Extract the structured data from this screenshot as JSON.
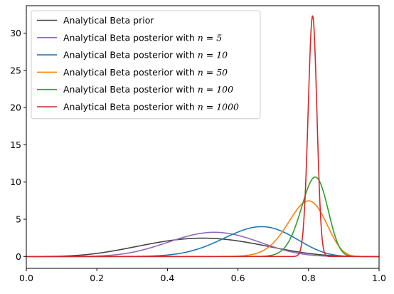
{
  "chart_data": {
    "type": "line",
    "title": "",
    "xlabel": "",
    "ylabel": "",
    "xlim": [
      0,
      1
    ],
    "ylim": [
      -1.6,
      33.7
    ],
    "x_ticks": [
      0.0,
      0.2,
      0.4,
      0.6,
      0.8,
      1.0
    ],
    "x_tick_labels": [
      "0.0",
      "0.2",
      "0.4",
      "0.6",
      "0.8",
      "1.0"
    ],
    "y_ticks": [
      0,
      5,
      10,
      15,
      20,
      25,
      30
    ],
    "y_tick_labels": [
      "0",
      "5",
      "10",
      "15",
      "20",
      "25",
      "30"
    ],
    "grid": false,
    "legend_position": "top-left",
    "series": [
      {
        "name": "Analytical Beta prior",
        "name_prefix": "Analytical Beta prior",
        "n_label": "",
        "color": "#444444",
        "alpha": 5,
        "beta": 5
      },
      {
        "name": "Analytical Beta posterior with n = 5",
        "name_prefix": "Analytical Beta posterior with ",
        "n_label": "n = 5",
        "color": "#9467bd",
        "alpha": 9,
        "beta": 8
      },
      {
        "name": "Analytical Beta posterior with n = 10",
        "name_prefix": "Analytical Beta posterior with ",
        "n_label": "n = 10",
        "color": "#1f77b4",
        "alpha": 15,
        "beta": 8
      },
      {
        "name": "Analytical Beta posterior with n = 50",
        "name_prefix": "Analytical Beta posterior with ",
        "n_label": "n = 50",
        "color": "#ff7f0e",
        "alpha": 45,
        "beta": 12
      },
      {
        "name": "Analytical Beta posterior with n = 100",
        "name_prefix": "Analytical Beta posterior with ",
        "n_label": "n = 100",
        "color": "#2ca02c",
        "alpha": 87,
        "beta": 20
      },
      {
        "name": "Analytical Beta posterior with n = 1000",
        "name_prefix": "Analytical Beta posterior with ",
        "n_label": "n = 1000",
        "color": "#d62728",
        "alpha": 815,
        "beta": 190
      }
    ]
  }
}
